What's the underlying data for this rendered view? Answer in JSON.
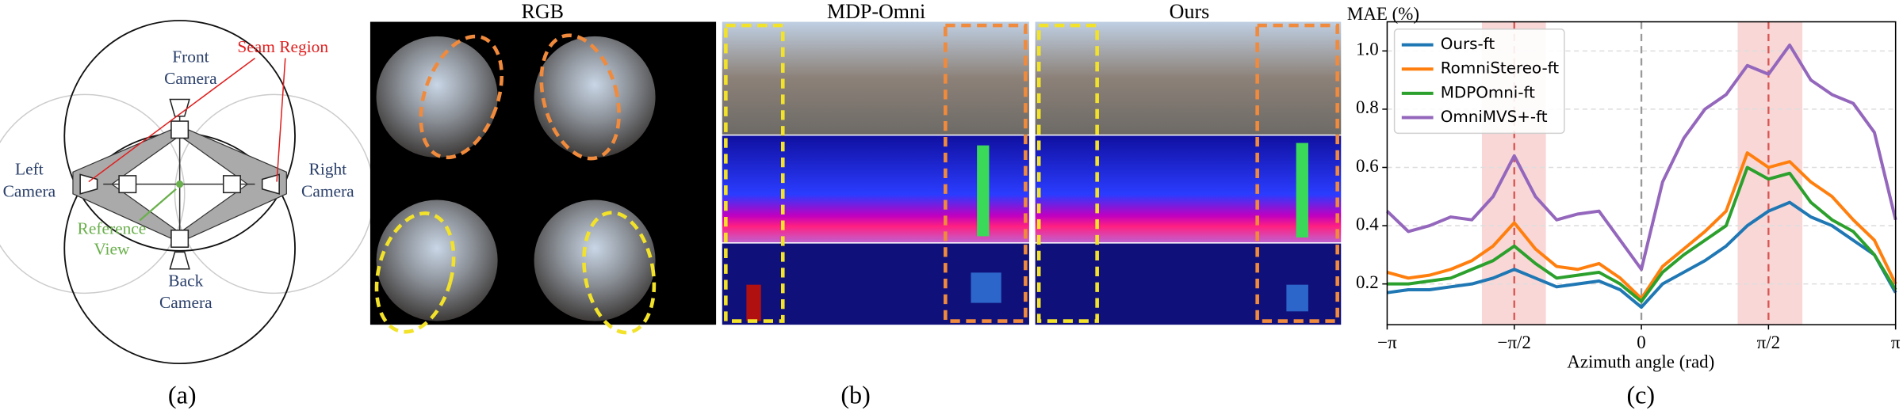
{
  "panel_a": {
    "front_camera": [
      "Front",
      "Camera"
    ],
    "seam_region": "Seam Region",
    "left_camera": [
      "Left",
      "Camera"
    ],
    "right_camera": [
      "Right",
      "Camera"
    ],
    "reference_view": [
      "Reference",
      "View"
    ],
    "back_camera": [
      "Back",
      "Camera"
    ],
    "caption": "(a)"
  },
  "panel_b": {
    "titles": [
      "RGB",
      "MDP-Omni",
      "Ours"
    ],
    "caption": "(b)"
  },
  "chart_data": {
    "type": "line",
    "y_label": "MAE (%)",
    "x_label": "Azimuth angle (rad)",
    "caption": "(c)",
    "xlim": [
      -3.1416,
      3.1416
    ],
    "ylim": [
      0.06,
      1.1
    ],
    "xticks": [
      {
        "value": -3.1416,
        "label": "−π"
      },
      {
        "value": -1.5708,
        "label": "−π/2"
      },
      {
        "value": 0,
        "label": "0"
      },
      {
        "value": 1.5708,
        "label": "π/2"
      },
      {
        "value": 3.1416,
        "label": "π"
      }
    ],
    "yticks": [
      0.2,
      0.4,
      0.6,
      0.8,
      {
        "value": 1,
        "label": "1.0"
      }
    ],
    "grid": true,
    "legend": "upper-left",
    "highlight_color": "#f4b6b6",
    "highlight_spans": [
      [
        -1.97,
        -1.18
      ],
      [
        1.19,
        1.99
      ]
    ],
    "reference_lines": [
      {
        "value": -1.5708,
        "color": "#d9534f"
      },
      {
        "value": 0,
        "color": "#999999"
      },
      {
        "value": 1.5708,
        "color": "#d9534f"
      }
    ],
    "x": [
      -3.1416,
      -2.8798,
      -2.618,
      -2.3562,
      -2.0944,
      -1.8326,
      -1.5708,
      -1.309,
      -1.0472,
      -0.7854,
      -0.5236,
      -0.2618,
      0,
      0.2618,
      0.5236,
      0.7854,
      1.0472,
      1.309,
      1.5708,
      1.8326,
      2.0944,
      2.3562,
      2.618,
      2.8798,
      3.1416
    ],
    "series": [
      {
        "name": "Ours-ft",
        "color": "#1f77b4",
        "values": [
          0.17,
          0.18,
          0.18,
          0.19,
          0.2,
          0.22,
          0.25,
          0.22,
          0.19,
          0.2,
          0.21,
          0.18,
          0.12,
          0.2,
          0.24,
          0.28,
          0.33,
          0.4,
          0.45,
          0.48,
          0.43,
          0.4,
          0.35,
          0.3,
          0.17
        ]
      },
      {
        "name": "RomniStereo-ft",
        "color": "#ff7f0e",
        "values": [
          0.24,
          0.22,
          0.23,
          0.25,
          0.28,
          0.33,
          0.41,
          0.32,
          0.26,
          0.25,
          0.27,
          0.22,
          0.15,
          0.26,
          0.32,
          0.38,
          0.45,
          0.65,
          0.6,
          0.62,
          0.55,
          0.5,
          0.42,
          0.35,
          0.2
        ]
      },
      {
        "name": "MDPOmni-ft",
        "color": "#2ca02c",
        "values": [
          0.2,
          0.2,
          0.21,
          0.22,
          0.25,
          0.28,
          0.33,
          0.27,
          0.22,
          0.23,
          0.24,
          0.2,
          0.14,
          0.24,
          0.3,
          0.35,
          0.4,
          0.6,
          0.56,
          0.58,
          0.48,
          0.42,
          0.38,
          0.3,
          0.18
        ]
      },
      {
        "name": "OmniMVS+-ft",
        "color": "#9467bd",
        "values": [
          0.45,
          0.38,
          0.4,
          0.43,
          0.42,
          0.5,
          0.64,
          0.5,
          0.42,
          0.44,
          0.45,
          0.35,
          0.25,
          0.55,
          0.7,
          0.8,
          0.85,
          0.95,
          0.92,
          1.02,
          0.9,
          0.85,
          0.82,
          0.72,
          0.42
        ]
      }
    ]
  }
}
